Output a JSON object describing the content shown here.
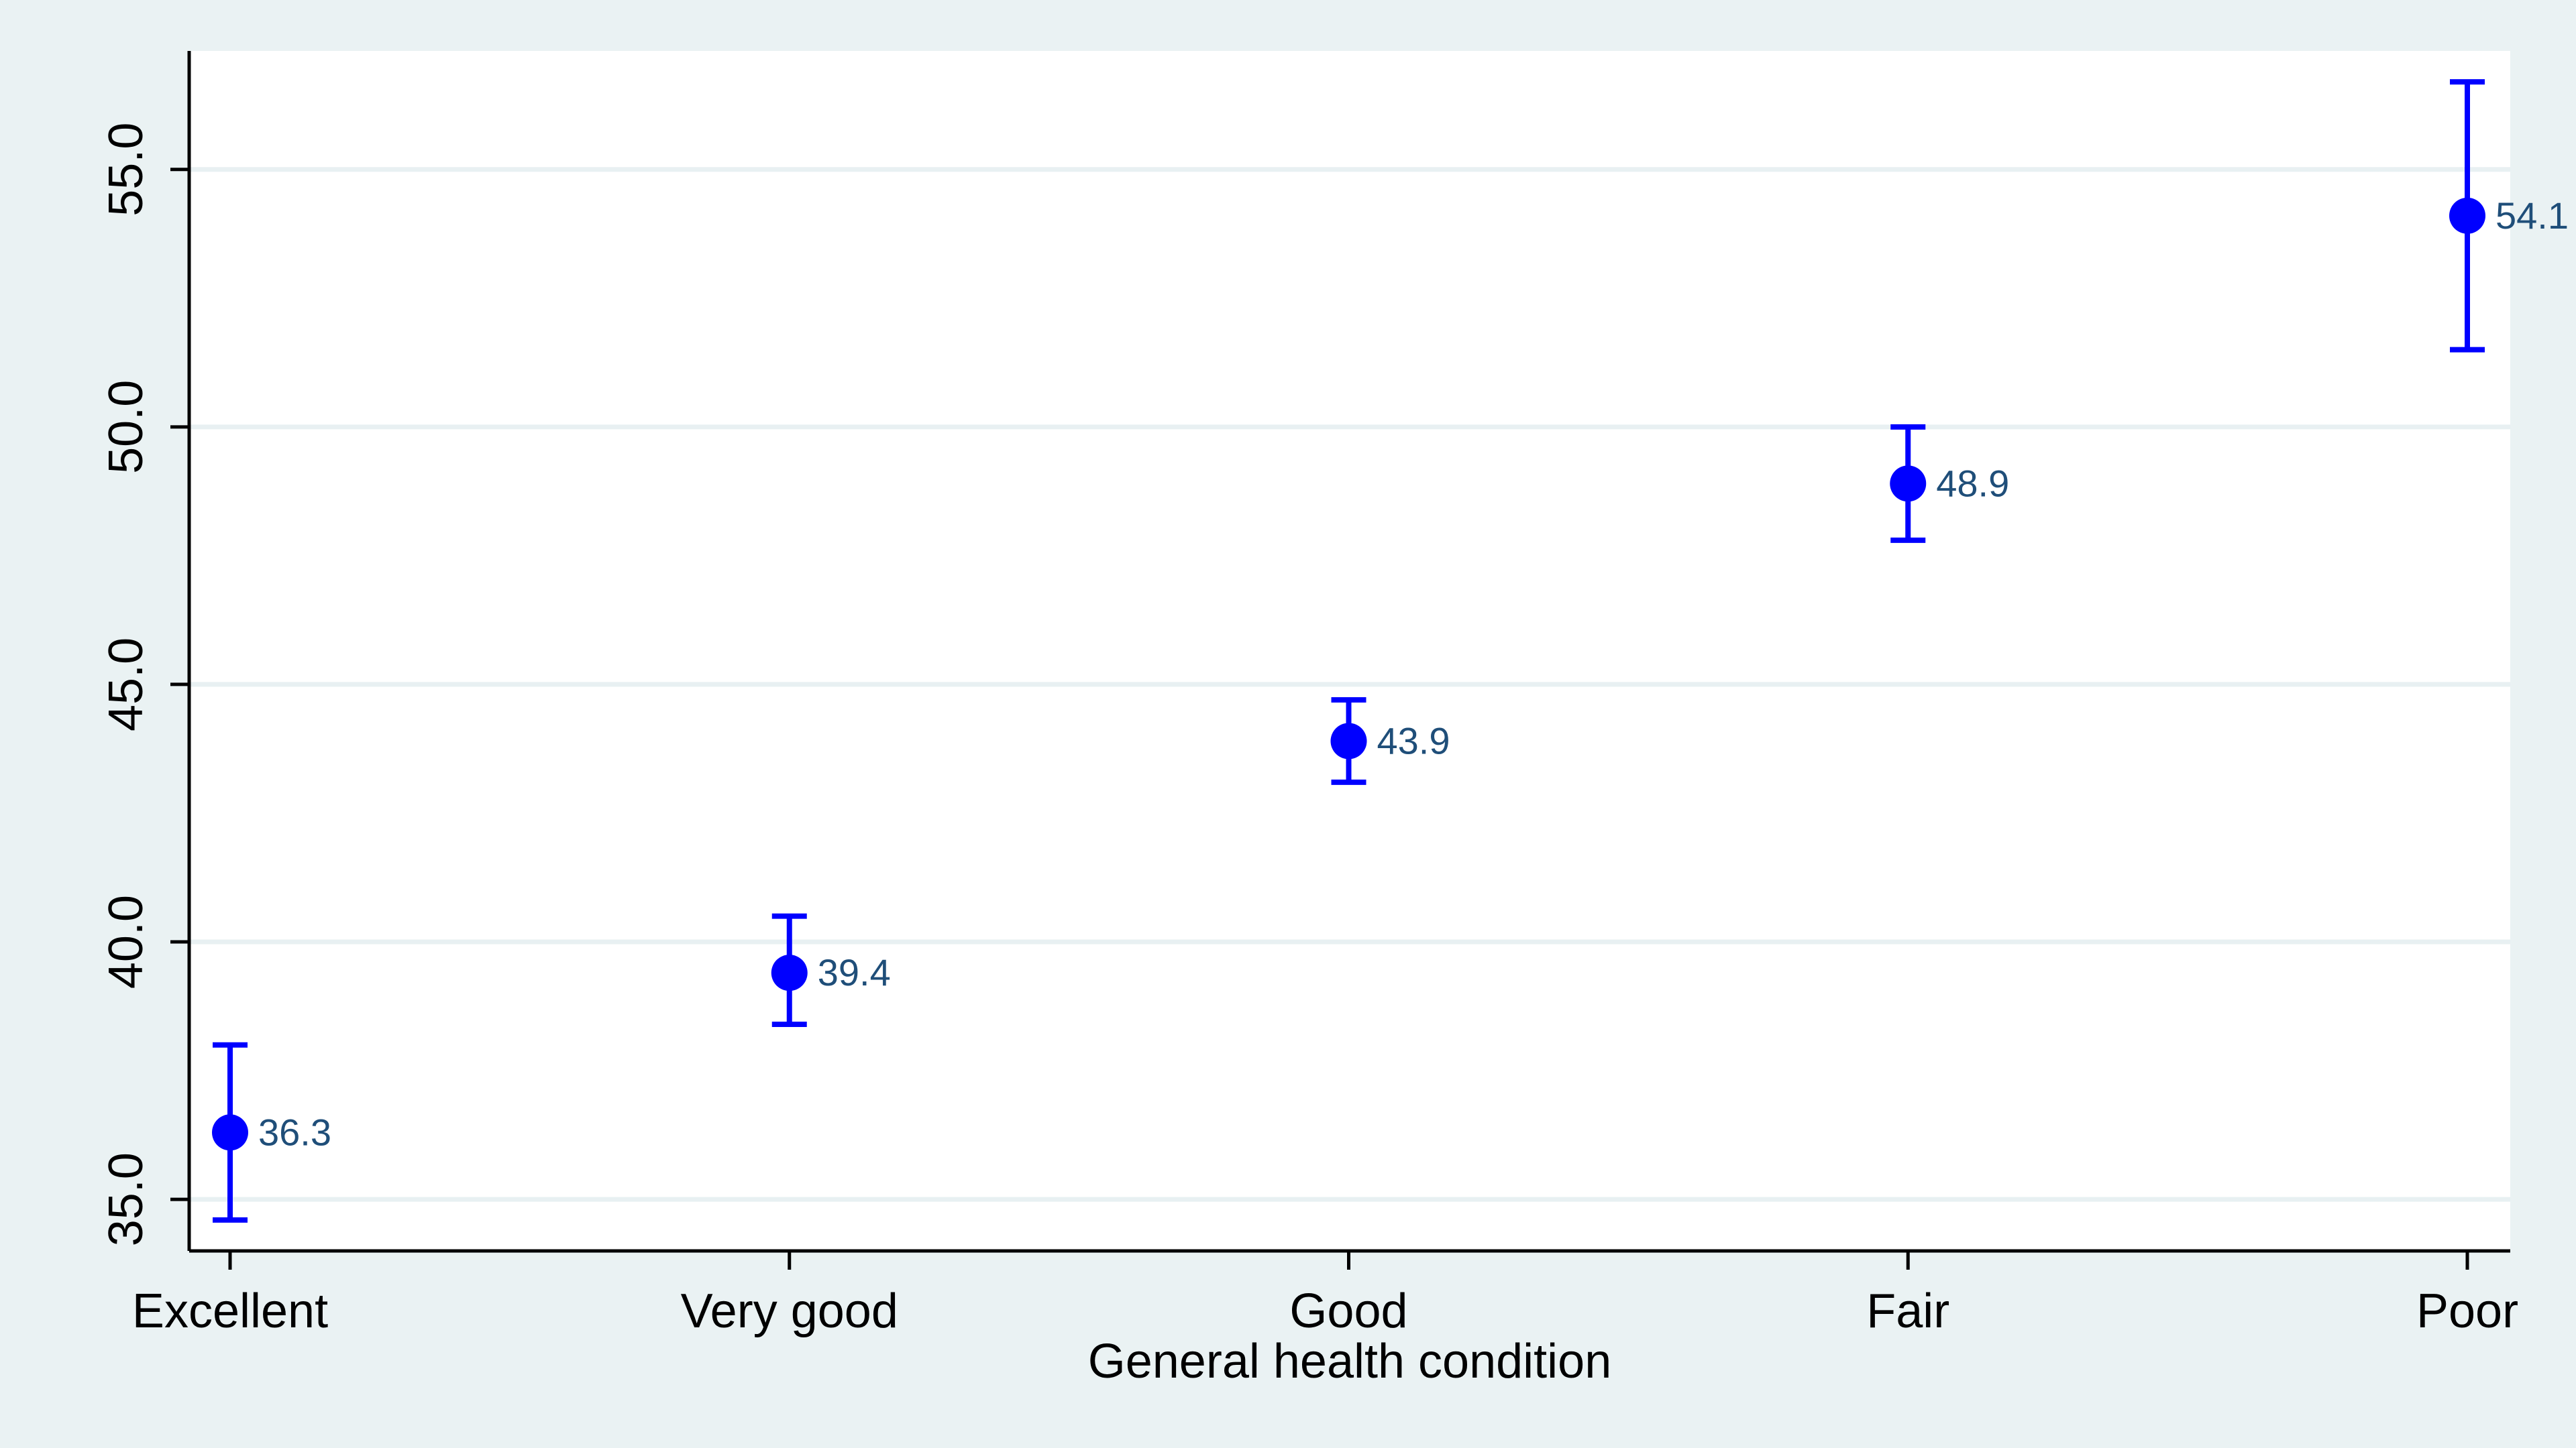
{
  "chart_data": {
    "type": "scatter",
    "title": "",
    "xlabel": "General health condition",
    "ylabel": "",
    "categories": [
      "Excellent",
      "Very good",
      "Good",
      "Fair",
      "Poor"
    ],
    "series": [
      {
        "values": [
          36.3,
          39.4,
          43.9,
          48.9,
          54.1
        ],
        "ci_lower": [
          34.6,
          38.4,
          43.1,
          47.8,
          51.5
        ],
        "ci_upper": [
          38.0,
          40.5,
          44.7,
          50.0,
          56.7
        ],
        "value_labels": [
          "36.3",
          "39.4",
          "43.9",
          "48.9",
          "54.1"
        ]
      }
    ],
    "yticks": [
      35.0,
      40.0,
      45.0,
      50.0,
      55.0
    ],
    "ytick_labels": [
      "35.0",
      "40.0",
      "45.0",
      "50.0",
      "55.0"
    ],
    "ylim": [
      34.0,
      57.3
    ],
    "grid": true,
    "legend": "none",
    "colors": {
      "marker": "#0000ff",
      "label": "#1f4e79",
      "grid": "#e8f0f2",
      "plot_bg": "#ffffff",
      "page_bg": "#eaf2f3"
    }
  }
}
